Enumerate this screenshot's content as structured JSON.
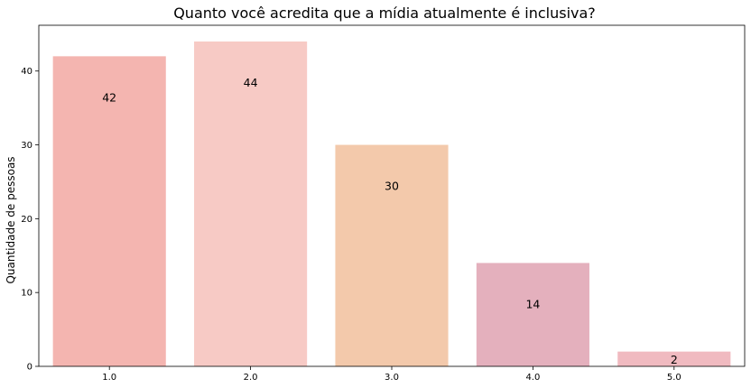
{
  "chart_data": {
    "type": "bar",
    "title": "Quanto você acredita que a mídia atualmente é inclusiva?",
    "xlabel": "",
    "ylabel": "Quantidade de pessoas",
    "categories": [
      "1.0",
      "2.0",
      "3.0",
      "4.0",
      "5.0"
    ],
    "values": [
      42,
      44,
      30,
      14,
      2
    ],
    "data_labels": [
      "42",
      "44",
      "30",
      "14",
      "2"
    ],
    "colors": [
      "#f4b5b0",
      "#f7cac5",
      "#f3c9ab",
      "#e4b0bd",
      "#f0bac0"
    ],
    "ylim": [
      0,
      46.2
    ],
    "yticks": [
      0,
      10,
      20,
      30,
      40
    ],
    "ytick_labels": [
      "0",
      "10",
      "20",
      "30",
      "40"
    ],
    "grid": false,
    "legend": "none"
  }
}
